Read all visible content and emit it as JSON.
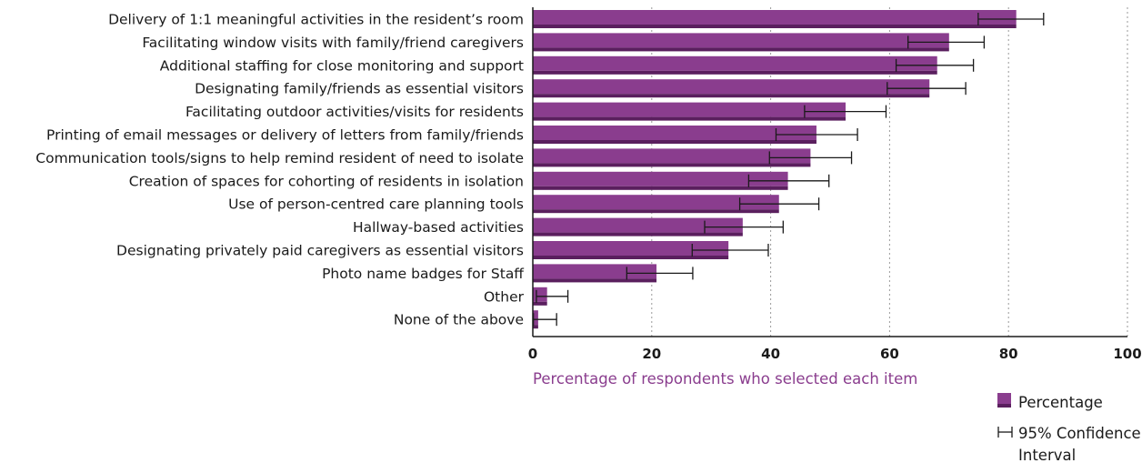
{
  "chart_data": {
    "type": "bar",
    "orientation": "horizontal",
    "categories": [
      "Delivery of 1:1 meaningful activities in the resident’s room",
      "Facilitating window visits with family/friend caregivers",
      "Additional staffing for close monitoring and support",
      "Designating family/friends as essential visitors",
      "Facilitating outdoor activities/visits for residents",
      "Printing of email messages or delivery of letters from family/friends",
      "Communication tools/signs to help remind resident of need to isolate",
      "Creation of spaces for cohorting of residents in isolation",
      "Use of person-centred care planning tools",
      "Hallway-based activities",
      "Designating privately paid caregivers as essential visitors",
      "Photo name badges for Staff",
      "Other",
      "None of the above"
    ],
    "series": [
      {
        "name": "Percentage",
        "values": [
          81.3,
          70.0,
          68.0,
          66.7,
          52.6,
          47.7,
          46.7,
          42.9,
          41.4,
          35.3,
          32.9,
          20.8,
          2.4,
          0.9
        ]
      }
    ],
    "ci_lower": [
      74.9,
      63.1,
      61.1,
      59.6,
      45.7,
      40.9,
      39.8,
      36.3,
      34.8,
      28.9,
      26.8,
      15.8,
      0.6,
      0.1
    ],
    "ci_upper": [
      85.9,
      75.9,
      74.1,
      72.8,
      59.4,
      54.6,
      53.6,
      49.8,
      48.1,
      42.1,
      39.6,
      26.9,
      5.9,
      4.0
    ],
    "xlim": [
      0,
      100
    ],
    "xticks": [
      "0",
      "20",
      "40",
      "60",
      "80",
      "100"
    ],
    "xlabel": "Percentage of respondents who selected each item",
    "ylabel": "",
    "grid": "vertical dashed",
    "legend_position": "bottom-right",
    "legend": {
      "bar_label": "Percentage",
      "ci_label_line1": "95% Confidence",
      "ci_label_line2": "Interval"
    },
    "colors": {
      "bar_fill": "#8a3d8e",
      "bar_shadow": "#5a1f5e",
      "xlabel": "#8a3d8e",
      "error_bar": "#1a1a1a"
    }
  }
}
